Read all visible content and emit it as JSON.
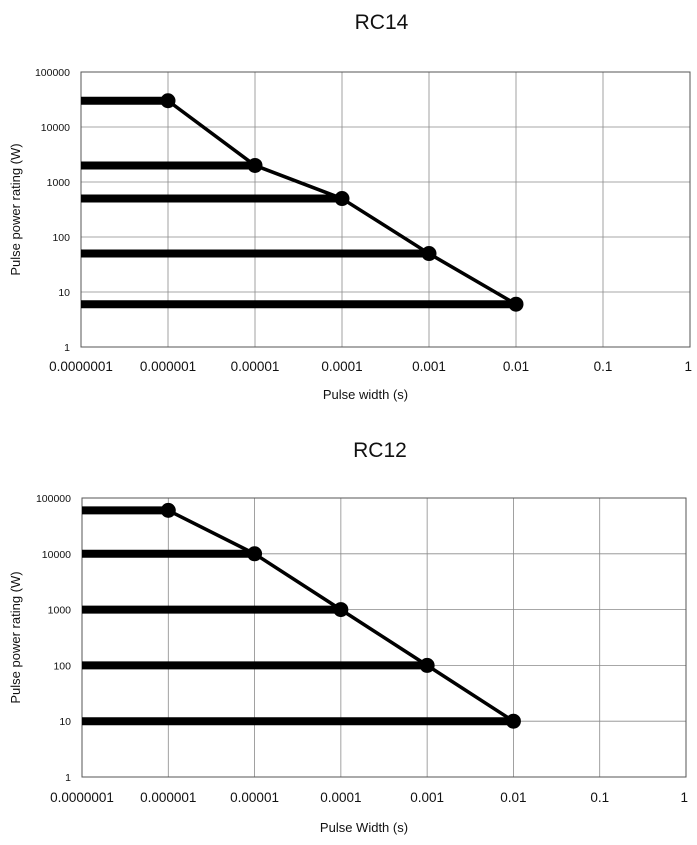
{
  "chart_data": [
    {
      "type": "line",
      "title": "RC14",
      "xlabel": "Pulse width (s)",
      "ylabel": "Pulse power rating (W)",
      "x_scale": "log",
      "y_scale": "log",
      "xlim": [
        1e-07,
        1
      ],
      "ylim": [
        1,
        100000
      ],
      "grid": true,
      "x_tick_labels": [
        "0.0000001",
        "0.000001",
        "0.00001",
        "0.0001",
        "0.001",
        "0.01",
        "0.1",
        "1"
      ],
      "y_tick_labels": [
        "1",
        "10",
        "100",
        "1000",
        "10000",
        "100000"
      ],
      "series": [
        {
          "x": [
            1e-06,
            1e-05,
            0.0001,
            0.001,
            0.01
          ],
          "y": [
            30000,
            2000,
            500,
            50,
            6
          ]
        }
      ]
    },
    {
      "type": "line",
      "title": "RC12",
      "xlabel": "Pulse Width (s)",
      "ylabel": "Pulse power rating (W)",
      "x_scale": "log",
      "y_scale": "log",
      "xlim": [
        1e-07,
        1
      ],
      "ylim": [
        1,
        100000
      ],
      "grid": true,
      "x_tick_labels": [
        "0.0000001",
        "0.000001",
        "0.00001",
        "0.0001",
        "0.001",
        "0.01",
        "0.1",
        "1"
      ],
      "y_tick_labels": [
        "1",
        "10",
        "100",
        "1000",
        "10000",
        "100000"
      ],
      "series": [
        {
          "x": [
            1e-06,
            1e-05,
            0.0001,
            0.001,
            0.01
          ],
          "y": [
            60000,
            10000,
            1000,
            100,
            10
          ]
        }
      ]
    }
  ]
}
